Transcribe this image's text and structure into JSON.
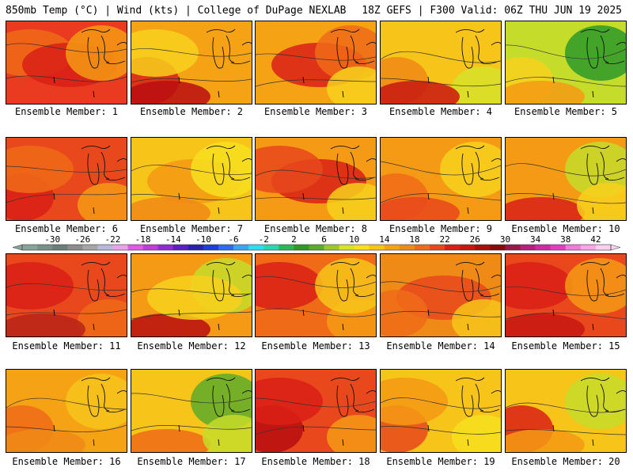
{
  "header": {
    "left": "850mb Temp (°C) | Wind (kts) | College of DuPage NEXLAB",
    "right": "18Z GEFS | F300 Valid: 06Z THU JUN 19 2025"
  },
  "caption_prefix": "Ensemble Member:",
  "panels": [
    {
      "member": 1,
      "caption": "Ensemble Member: 1",
      "base": "#ea3a1f",
      "blobs": [
        {
          "color": "#f06b18",
          "ix": 0
        },
        {
          "color": "#d92016",
          "ix": 1
        },
        {
          "color": "#f59a14",
          "ix": 2
        }
      ]
    },
    {
      "member": 2,
      "caption": "Ensemble Member: 2",
      "base": "#f5a214",
      "blobs": [
        {
          "color": "#d92016",
          "ix": 3
        },
        {
          "color": "#f7d11c",
          "ix": 0
        },
        {
          "color": "#b80e10",
          "ix": 4
        }
      ]
    },
    {
      "member": 3,
      "caption": "Ensemble Member: 3",
      "base": "#f5a214",
      "blobs": [
        {
          "color": "#d92016",
          "ix": 1
        },
        {
          "color": "#f06b18",
          "ix": 2
        },
        {
          "color": "#f7d11c",
          "ix": 5
        }
      ]
    },
    {
      "member": 4,
      "caption": "Ensemble Member: 4",
      "base": "#f7c41a",
      "blobs": [
        {
          "color": "#f08a16",
          "ix": 3
        },
        {
          "color": "#d7e22a",
          "ix": 5
        },
        {
          "color": "#c81812",
          "ix": 4
        }
      ]
    },
    {
      "member": 5,
      "caption": "Ensemble Member: 5",
      "base": "#c5dc2a",
      "blobs": [
        {
          "color": "#2d9a2a",
          "ix": 2
        },
        {
          "color": "#f7d11c",
          "ix": 3
        },
        {
          "color": "#f59a14",
          "ix": 4
        }
      ]
    },
    {
      "member": 6,
      "caption": "Ensemble Member: 6",
      "base": "#e8481c",
      "blobs": [
        {
          "color": "#d92016",
          "ix": 3
        },
        {
          "color": "#f59a14",
          "ix": 5
        },
        {
          "color": "#f06b18",
          "ix": 0
        }
      ]
    },
    {
      "member": 7,
      "caption": "Ensemble Member: 7",
      "base": "#f7c41a",
      "blobs": [
        {
          "color": "#f59a14",
          "ix": 1
        },
        {
          "color": "#f7e01e",
          "ix": 2
        },
        {
          "color": "#f08a16",
          "ix": 4
        }
      ]
    },
    {
      "member": 8,
      "caption": "Ensemble Member: 8",
      "base": "#f59a14",
      "blobs": [
        {
          "color": "#d92016",
          "ix": 1
        },
        {
          "color": "#f7d11c",
          "ix": 5
        },
        {
          "color": "#e8481c",
          "ix": 0
        }
      ]
    },
    {
      "member": 9,
      "caption": "Ensemble Member: 9",
      "base": "#f59a14",
      "blobs": [
        {
          "color": "#f06b18",
          "ix": 3
        },
        {
          "color": "#f7d11c",
          "ix": 2
        },
        {
          "color": "#e8481c",
          "ix": 4
        }
      ]
    },
    {
      "member": 10,
      "caption": "Ensemble Member: 10",
      "base": "#f59a14",
      "blobs": [
        {
          "color": "#d92016",
          "ix": 4
        },
        {
          "color": "#c5dc2a",
          "ix": 2
        },
        {
          "color": "#f7d11c",
          "ix": 5
        }
      ]
    },
    {
      "member": 11,
      "caption": "Ensemble Member: 11",
      "base": "#e8481c",
      "blobs": [
        {
          "color": "#d92016",
          "ix": 0
        },
        {
          "color": "#f06b18",
          "ix": 5
        },
        {
          "color": "#b82418",
          "ix": 4
        }
      ]
    },
    {
      "member": 12,
      "caption": "Ensemble Member: 12",
      "base": "#f59a14",
      "blobs": [
        {
          "color": "#b80e10",
          "ix": 4
        },
        {
          "color": "#c5dc2a",
          "ix": 2
        },
        {
          "color": "#f7d11c",
          "ix": 1
        }
      ]
    },
    {
      "member": 13,
      "caption": "Ensemble Member: 13",
      "base": "#f06b18",
      "blobs": [
        {
          "color": "#d92016",
          "ix": 0
        },
        {
          "color": "#f59a14",
          "ix": 5
        },
        {
          "color": "#f7c41a",
          "ix": 2
        }
      ]
    },
    {
      "member": 14,
      "caption": "Ensemble Member: 14",
      "base": "#f08a16",
      "blobs": [
        {
          "color": "#e8481c",
          "ix": 1
        },
        {
          "color": "#f7c41a",
          "ix": 5
        },
        {
          "color": "#f06b18",
          "ix": 3
        }
      ]
    },
    {
      "member": 15,
      "caption": "Ensemble Member: 15",
      "base": "#e8481c",
      "blobs": [
        {
          "color": "#d92016",
          "ix": 0
        },
        {
          "color": "#f59a14",
          "ix": 2
        },
        {
          "color": "#c81812",
          "ix": 4
        }
      ]
    },
    {
      "member": 16,
      "caption": "Ensemble Member: 16",
      "base": "#f5a214",
      "blobs": [
        {
          "color": "#f06b18",
          "ix": 3
        },
        {
          "color": "#f7c41a",
          "ix": 2
        },
        {
          "color": "#f08a16",
          "ix": 4
        }
      ]
    },
    {
      "member": 17,
      "caption": "Ensemble Member: 17",
      "base": "#f7c41a",
      "blobs": [
        {
          "color": "#5eaa2a",
          "ix": 2
        },
        {
          "color": "#f06b18",
          "ix": 4
        },
        {
          "color": "#c5dc2a",
          "ix": 5
        }
      ]
    },
    {
      "member": 18,
      "caption": "Ensemble Member: 18",
      "base": "#e8481c",
      "blobs": [
        {
          "color": "#b80e10",
          "ix": 3
        },
        {
          "color": "#f59a14",
          "ix": 5
        },
        {
          "color": "#d92016",
          "ix": 0
        }
      ]
    },
    {
      "member": 19,
      "caption": "Ensemble Member: 19",
      "base": "#f7c41a",
      "blobs": [
        {
          "color": "#e8481c",
          "ix": 3
        },
        {
          "color": "#f59a14",
          "ix": 0
        },
        {
          "color": "#f7e01e",
          "ix": 5
        }
      ]
    },
    {
      "member": 20,
      "caption": "Ensemble Member: 20",
      "base": "#f7c41a",
      "blobs": [
        {
          "color": "#c5dc2a",
          "ix": 2
        },
        {
          "color": "#d92016",
          "ix": 3
        },
        {
          "color": "#f59a14",
          "ix": 4
        }
      ]
    }
  ],
  "colorbar": {
    "labels": [
      "-30",
      "-26",
      "-22",
      "-18",
      "-14",
      "-10",
      "-6",
      "-2",
      "2",
      "6",
      "10",
      "14",
      "18",
      "22",
      "26",
      "30",
      "34",
      "38",
      "42"
    ],
    "colors": [
      "#8aa39a",
      "#7a9189",
      "#6a7f78",
      "#8c8c8c",
      "#a6a6a6",
      "#b8b8d8",
      "#e6a6e6",
      "#e05ae6",
      "#c23cdc",
      "#8f2bd6",
      "#5a1fc9",
      "#2a20b0",
      "#1f3ed6",
      "#2f6af0",
      "#3aa6f2",
      "#30dcf0",
      "#2ad6b0",
      "#2ab85a",
      "#2d9a2a",
      "#5eaa2a",
      "#9ec82a",
      "#d7e22a",
      "#f7e01e",
      "#f7c41a",
      "#f5a214",
      "#f08a16",
      "#f06b18",
      "#e8481c",
      "#d92016",
      "#c81812",
      "#a8100e",
      "#8a0a0c",
      "#9a1848",
      "#b81e7a",
      "#d22aa0",
      "#e63cc0",
      "#f07ad6",
      "#f7a6e6",
      "#fad0f0"
    ]
  }
}
